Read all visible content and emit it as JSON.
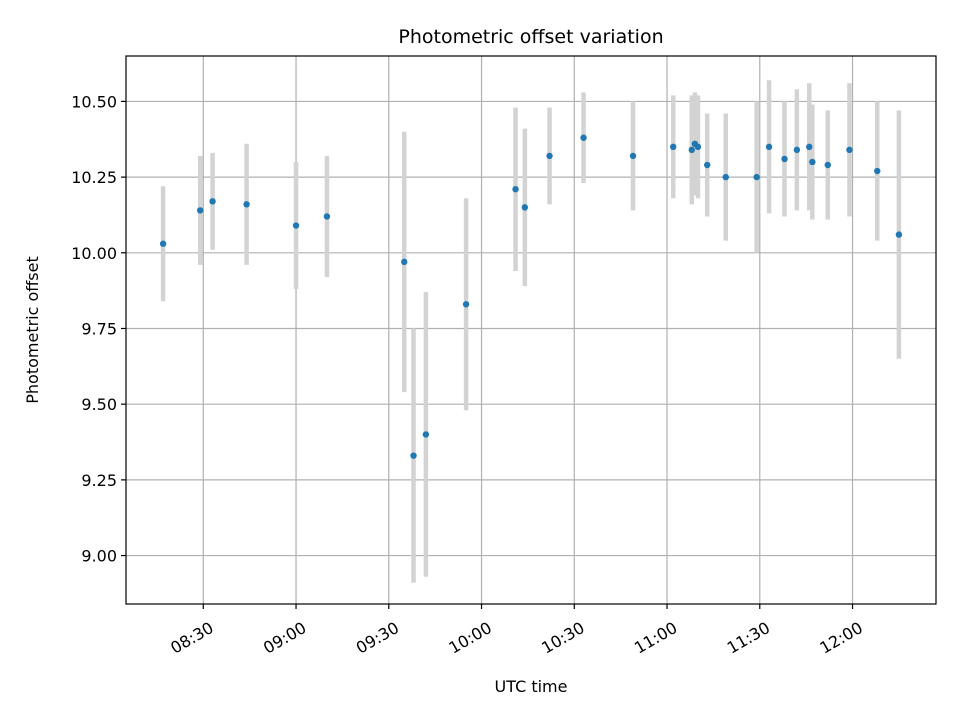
{
  "chart_data": {
    "type": "scatter",
    "title": "Photometric offset variation",
    "xlabel": "UTC time",
    "ylabel": "Photometric offset",
    "x_ticks": [
      "08:30",
      "09:00",
      "09:30",
      "10:00",
      "10:30",
      "11:00",
      "11:30",
      "12:00"
    ],
    "y_ticks": [
      "9.00",
      "9.25",
      "9.50",
      "9.75",
      "10.00",
      "10.25",
      "10.50"
    ],
    "xlim": [
      "08:05",
      "12:27"
    ],
    "ylim": [
      8.84,
      10.65
    ],
    "grid": true,
    "point_color": "#1f77b4",
    "errorbar_color": "#d3d3d3",
    "points": [
      {
        "x": "08:17",
        "y": 10.03,
        "err": 0.19
      },
      {
        "x": "08:29",
        "y": 10.14,
        "err": 0.18
      },
      {
        "x": "08:33",
        "y": 10.17,
        "err": 0.16
      },
      {
        "x": "08:44",
        "y": 10.16,
        "err": 0.2
      },
      {
        "x": "09:00",
        "y": 10.09,
        "err": 0.21
      },
      {
        "x": "09:10",
        "y": 10.12,
        "err": 0.2
      },
      {
        "x": "09:35",
        "y": 9.97,
        "err": 0.43
      },
      {
        "x": "09:38",
        "y": 9.33,
        "err": 0.42
      },
      {
        "x": "09:42",
        "y": 9.4,
        "err": 0.47
      },
      {
        "x": "09:55",
        "y": 9.83,
        "err": 0.35
      },
      {
        "x": "10:11",
        "y": 10.21,
        "err": 0.27
      },
      {
        "x": "10:14",
        "y": 10.15,
        "err": 0.26
      },
      {
        "x": "10:22",
        "y": 10.32,
        "err": 0.16
      },
      {
        "x": "10:33",
        "y": 10.38,
        "err": 0.15
      },
      {
        "x": "10:49",
        "y": 10.32,
        "err": 0.18
      },
      {
        "x": "11:02",
        "y": 10.35,
        "err": 0.17
      },
      {
        "x": "11:08",
        "y": 10.34,
        "err": 0.18
      },
      {
        "x": "11:09",
        "y": 10.36,
        "err": 0.17
      },
      {
        "x": "11:10",
        "y": 10.35,
        "err": 0.17
      },
      {
        "x": "11:13",
        "y": 10.29,
        "err": 0.17
      },
      {
        "x": "11:19",
        "y": 10.25,
        "err": 0.21
      },
      {
        "x": "11:29",
        "y": 10.25,
        "err": 0.25
      },
      {
        "x": "11:33",
        "y": 10.35,
        "err": 0.22
      },
      {
        "x": "11:38",
        "y": 10.31,
        "err": 0.19
      },
      {
        "x": "11:42",
        "y": 10.34,
        "err": 0.2
      },
      {
        "x": "11:46",
        "y": 10.35,
        "err": 0.21
      },
      {
        "x": "11:47",
        "y": 10.3,
        "err": 0.19
      },
      {
        "x": "11:52",
        "y": 10.29,
        "err": 0.18
      },
      {
        "x": "11:59",
        "y": 10.34,
        "err": 0.22
      },
      {
        "x": "12:08",
        "y": 10.27,
        "err": 0.23
      },
      {
        "x": "12:15",
        "y": 10.06,
        "err": 0.41
      }
    ]
  }
}
